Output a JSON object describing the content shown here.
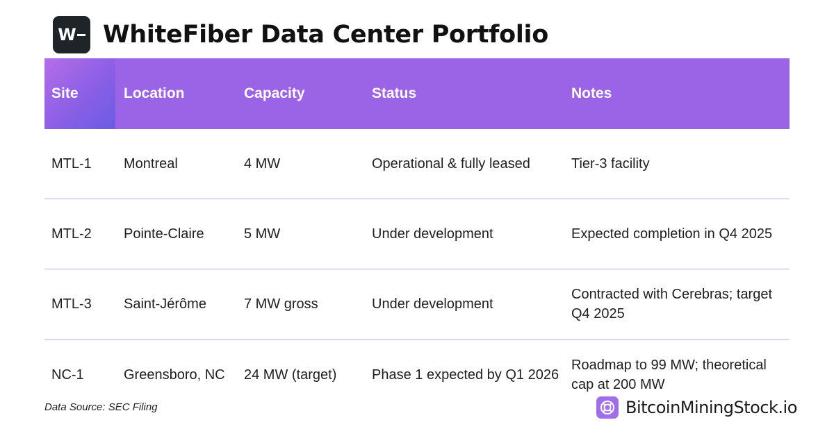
{
  "header": {
    "logo_text": "W",
    "title": "WhiteFiber Data Center Portfolio"
  },
  "table": {
    "columns": [
      "Site",
      "Location",
      "Capacity",
      "Status",
      "Notes"
    ],
    "rows": [
      [
        "MTL-1",
        "Montreal",
        "4 MW",
        "Operational & fully leased",
        "Tier-3 facility"
      ],
      [
        "MTL-2",
        "Pointe-Claire",
        "5 MW",
        "Under development",
        "Expected completion in Q4 2025"
      ],
      [
        "MTL-3",
        "Saint-Jérôme",
        "7 MW gross",
        "Under development",
        "Contracted with Cerebras; target Q4 2025"
      ],
      [
        "NC-1",
        "Greensboro, NC",
        "24 MW (target)",
        "Phase 1 expected by Q1 2026",
        "Roadmap to 99 MW; theoretical cap at 200 MW"
      ]
    ]
  },
  "footer": {
    "source": "Data Source: SEC Filing",
    "brand": "BitcoinMiningStock.io"
  },
  "colors": {
    "header_bg": "#9b63e5",
    "row_divider": "#c4a8ec",
    "brand_icon": "#a06ee8"
  }
}
